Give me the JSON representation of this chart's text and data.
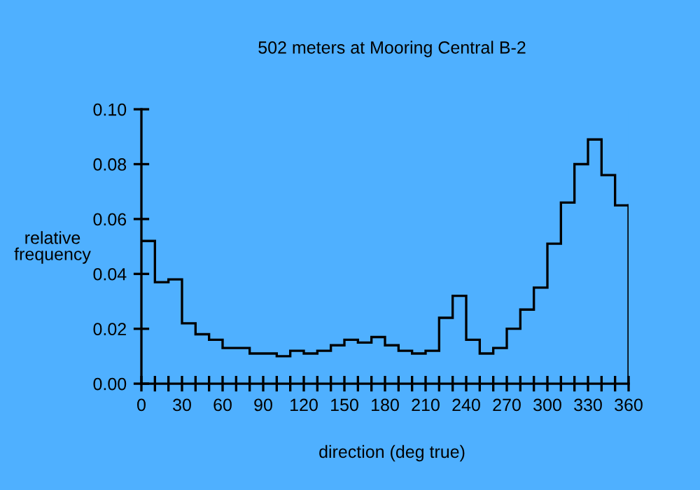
{
  "chart_data": {
    "type": "histogram",
    "title": "502 meters at Mooring Central B-2",
    "xlabel": "direction (deg true)",
    "ylabel": "relative\nfrequency",
    "bins": [
      0,
      10,
      20,
      30,
      40,
      50,
      60,
      70,
      80,
      90,
      100,
      110,
      120,
      130,
      140,
      150,
      160,
      170,
      180,
      190,
      200,
      210,
      220,
      230,
      240,
      250,
      260,
      270,
      280,
      290,
      300,
      310,
      320,
      330,
      340,
      350,
      360
    ],
    "values": [
      0.052,
      0.037,
      0.038,
      0.022,
      0.018,
      0.016,
      0.013,
      0.013,
      0.011,
      0.011,
      0.01,
      0.012,
      0.011,
      0.012,
      0.014,
      0.016,
      0.015,
      0.017,
      0.014,
      0.012,
      0.011,
      0.012,
      0.024,
      0.032,
      0.016,
      0.011,
      0.013,
      0.02,
      0.027,
      0.035,
      0.051,
      0.066,
      0.08,
      0.089,
      0.076,
      0.065
    ],
    "color": "#000000",
    "xlim": [
      0,
      360
    ],
    "ylim": [
      0,
      0.1
    ],
    "xticks": [
      0,
      {
        "value": 10,
        "label": null
      },
      {
        "value": 20,
        "label": null
      },
      30,
      {
        "value": 40,
        "label": null
      },
      {
        "value": 50,
        "label": null
      },
      60,
      {
        "value": 70,
        "label": null
      },
      {
        "value": 80,
        "label": null
      },
      90,
      {
        "value": 100,
        "label": null
      },
      {
        "value": 110,
        "label": null
      },
      120,
      {
        "value": 130,
        "label": null
      },
      {
        "value": 140,
        "label": null
      },
      150,
      {
        "value": 160,
        "label": null
      },
      {
        "value": 170,
        "label": null
      },
      180,
      {
        "value": 190,
        "label": null
      },
      {
        "value": 200,
        "label": null
      },
      210,
      {
        "value": 220,
        "label": null
      },
      {
        "value": 230,
        "label": null
      },
      240,
      {
        "value": 250,
        "label": null
      },
      {
        "value": 260,
        "label": null
      },
      270,
      {
        "value": 280,
        "label": null
      },
      {
        "value": 290,
        "label": null
      },
      300,
      {
        "value": 310,
        "label": null
      },
      {
        "value": 320,
        "label": null
      },
      330,
      {
        "value": 340,
        "label": null
      },
      {
        "value": 350,
        "label": null
      },
      360
    ],
    "yticks": [
      {
        "value": 0,
        "label": "0.00"
      },
      {
        "value": 0.02,
        "label": "0.02"
      },
      {
        "value": 0.04,
        "label": "0.04"
      },
      {
        "value": 0.06,
        "label": "0.06"
      },
      {
        "value": 0.08,
        "label": "0.08"
      },
      {
        "value": 0.1,
        "label": "0.10"
      }
    ],
    "grid": false,
    "legend": false
  }
}
